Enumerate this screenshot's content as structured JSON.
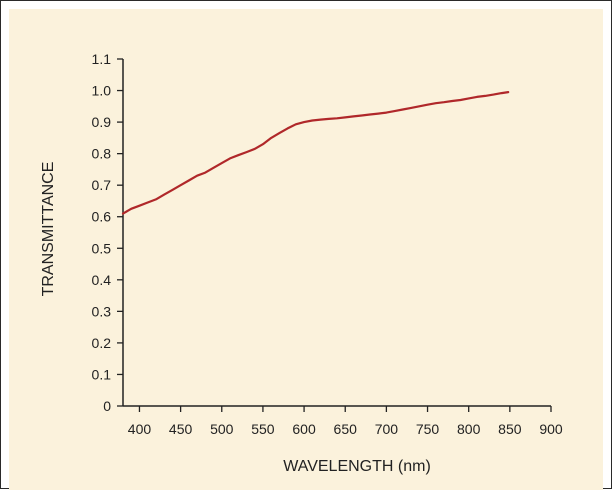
{
  "chart_data": {
    "type": "line",
    "title": "",
    "xlabel": "WAVELENGTH (nm)",
    "ylabel": "TRANSMITTANCE",
    "xlim": [
      380,
      900
    ],
    "ylim": [
      0,
      1.1
    ],
    "x_ticks": [
      400,
      450,
      500,
      550,
      600,
      650,
      700,
      750,
      800,
      850,
      900
    ],
    "y_ticks": [
      "0",
      "0.1",
      "0.2",
      "0.3",
      "0.4",
      "0.5",
      "0.6",
      "0.7",
      "0.8",
      "0.9",
      "1.0",
      "1.1"
    ],
    "grid": false,
    "series": [
      {
        "color": "#b0282a",
        "x": [
          380,
          390,
          400,
          410,
          420,
          430,
          440,
          450,
          460,
          470,
          480,
          490,
          500,
          510,
          520,
          530,
          540,
          550,
          560,
          570,
          580,
          590,
          600,
          610,
          620,
          630,
          640,
          650,
          660,
          670,
          680,
          690,
          700,
          710,
          720,
          730,
          740,
          750,
          760,
          770,
          780,
          790,
          800,
          810,
          820,
          830,
          840,
          848
        ],
        "y": [
          0.61,
          0.625,
          0.635,
          0.645,
          0.655,
          0.67,
          0.685,
          0.7,
          0.715,
          0.73,
          0.74,
          0.755,
          0.77,
          0.785,
          0.795,
          0.805,
          0.815,
          0.83,
          0.85,
          0.865,
          0.88,
          0.893,
          0.9,
          0.905,
          0.908,
          0.91,
          0.912,
          0.915,
          0.918,
          0.921,
          0.924,
          0.927,
          0.93,
          0.935,
          0.94,
          0.945,
          0.95,
          0.955,
          0.96,
          0.963,
          0.967,
          0.97,
          0.975,
          0.98,
          0.983,
          0.987,
          0.992,
          0.995
        ]
      }
    ]
  }
}
